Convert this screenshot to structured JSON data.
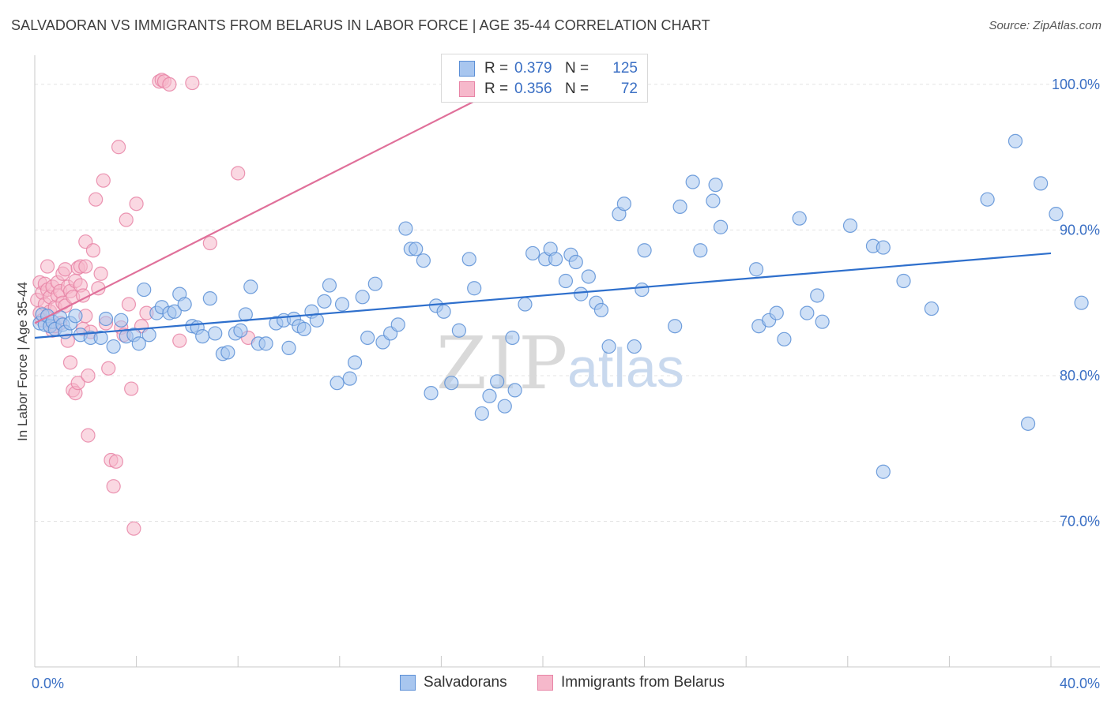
{
  "title": "SALVADORAN VS IMMIGRANTS FROM BELARUS IN LABOR FORCE | AGE 35-44 CORRELATION CHART",
  "source": "Source: ZipAtlas.com",
  "watermark": {
    "zip": "ZIP",
    "atlas": "atlas"
  },
  "colors": {
    "blue_fill": "#a8c6ef",
    "blue_stroke": "#5b8fd6",
    "blue_line": "#2e6fcc",
    "pink_fill": "#f6b8cb",
    "pink_stroke": "#e884a6",
    "pink_line": "#e0709a",
    "value_text": "#3a6fc4",
    "grid": "#e3e3e3"
  },
  "legend": {
    "rows": [
      {
        "r_label": "R =",
        "r_value": "0.379",
        "n_label": "N =",
        "n_value": "125"
      },
      {
        "r_label": "R =",
        "r_value": "0.356",
        "n_label": "N =",
        "n_value": "72"
      }
    ]
  },
  "bottom_legend": [
    "Salvadorans",
    "Immigrants from Belarus"
  ],
  "chart_data": {
    "type": "scatter",
    "xlabel": "",
    "ylabel": "In Labor Force | Age 35-44",
    "xlim": [
      0,
      40
    ],
    "ylim": [
      60,
      102
    ],
    "x_tick_labels": [
      {
        "value": 0,
        "label": "0.0%"
      },
      {
        "value": 40,
        "label": "40.0%"
      }
    ],
    "y_tick_labels": [
      {
        "value": 70,
        "label": "70.0%"
      },
      {
        "value": 80,
        "label": "80.0%"
      },
      {
        "value": 90,
        "label": "90.0%"
      },
      {
        "value": 100,
        "label": "100.0%"
      }
    ],
    "series": [
      {
        "name": "Salvadorans",
        "color": "blue",
        "trend": {
          "x": [
            0,
            40
          ],
          "y": [
            82.6,
            88.4
          ]
        },
        "points": [
          [
            0.2,
            83.6
          ],
          [
            0.3,
            84.2
          ],
          [
            0.4,
            83.5
          ],
          [
            0.5,
            84.1
          ],
          [
            0.6,
            83.4
          ],
          [
            0.7,
            83.7
          ],
          [
            0.8,
            83.2
          ],
          [
            1.0,
            84.0
          ],
          [
            1.1,
            83.5
          ],
          [
            1.2,
            83.0
          ],
          [
            1.4,
            83.6
          ],
          [
            1.6,
            84.1
          ],
          [
            1.8,
            82.8
          ],
          [
            2.2,
            82.6
          ],
          [
            2.6,
            82.6
          ],
          [
            2.8,
            83.9
          ],
          [
            3.1,
            82.0
          ],
          [
            3.4,
            83.8
          ],
          [
            3.6,
            82.7
          ],
          [
            3.9,
            82.8
          ],
          [
            4.1,
            82.2
          ],
          [
            4.3,
            85.9
          ],
          [
            4.5,
            82.8
          ],
          [
            4.8,
            84.3
          ],
          [
            5.0,
            84.7
          ],
          [
            5.3,
            84.3
          ],
          [
            5.5,
            84.4
          ],
          [
            5.7,
            85.6
          ],
          [
            5.9,
            84.9
          ],
          [
            6.2,
            83.4
          ],
          [
            6.4,
            83.3
          ],
          [
            6.6,
            82.7
          ],
          [
            6.9,
            85.3
          ],
          [
            7.1,
            82.9
          ],
          [
            7.4,
            81.5
          ],
          [
            7.6,
            81.6
          ],
          [
            7.9,
            82.9
          ],
          [
            8.1,
            83.1
          ],
          [
            8.3,
            84.2
          ],
          [
            8.5,
            86.1
          ],
          [
            8.8,
            82.2
          ],
          [
            9.1,
            82.2
          ],
          [
            9.5,
            83.6
          ],
          [
            9.8,
            83.8
          ],
          [
            10.0,
            81.9
          ],
          [
            10.2,
            83.9
          ],
          [
            10.4,
            83.4
          ],
          [
            10.6,
            83.2
          ],
          [
            10.9,
            84.4
          ],
          [
            11.1,
            83.8
          ],
          [
            11.4,
            85.1
          ],
          [
            11.6,
            86.2
          ],
          [
            11.9,
            79.5
          ],
          [
            12.1,
            84.9
          ],
          [
            12.4,
            79.8
          ],
          [
            12.6,
            80.9
          ],
          [
            12.9,
            85.4
          ],
          [
            13.1,
            82.6
          ],
          [
            13.4,
            86.3
          ],
          [
            13.7,
            82.3
          ],
          [
            14.0,
            82.9
          ],
          [
            14.3,
            83.5
          ],
          [
            14.6,
            90.1
          ],
          [
            14.8,
            88.7
          ],
          [
            15.0,
            88.7
          ],
          [
            15.3,
            87.9
          ],
          [
            15.6,
            78.8
          ],
          [
            15.8,
            84.8
          ],
          [
            16.1,
            84.4
          ],
          [
            16.4,
            79.5
          ],
          [
            16.7,
            83.1
          ],
          [
            17.1,
            88.0
          ],
          [
            17.3,
            86.0
          ],
          [
            17.6,
            77.4
          ],
          [
            17.9,
            78.6
          ],
          [
            18.2,
            79.6
          ],
          [
            18.5,
            77.9
          ],
          [
            18.8,
            82.6
          ],
          [
            18.9,
            79.0
          ],
          [
            19.3,
            84.9
          ],
          [
            19.6,
            88.4
          ],
          [
            20.1,
            88.0
          ],
          [
            20.3,
            88.7
          ],
          [
            20.5,
            88.0
          ],
          [
            20.9,
            86.5
          ],
          [
            21.1,
            88.3
          ],
          [
            21.3,
            87.8
          ],
          [
            21.5,
            85.6
          ],
          [
            21.8,
            86.8
          ],
          [
            22.1,
            85.0
          ],
          [
            22.3,
            84.5
          ],
          [
            22.6,
            82.0
          ],
          [
            23.0,
            91.1
          ],
          [
            23.2,
            91.8
          ],
          [
            23.6,
            82.0
          ],
          [
            23.9,
            85.9
          ],
          [
            24.0,
            88.6
          ],
          [
            25.2,
            83.4
          ],
          [
            25.4,
            91.6
          ],
          [
            25.9,
            93.3
          ],
          [
            26.2,
            88.6
          ],
          [
            26.8,
            93.1
          ],
          [
            26.7,
            92.0
          ],
          [
            27.0,
            90.2
          ],
          [
            28.4,
            87.3
          ],
          [
            28.5,
            83.4
          ],
          [
            28.9,
            83.8
          ],
          [
            29.2,
            84.3
          ],
          [
            29.5,
            82.5
          ],
          [
            30.1,
            90.8
          ],
          [
            30.4,
            84.3
          ],
          [
            30.8,
            85.5
          ],
          [
            31.0,
            83.7
          ],
          [
            32.1,
            90.3
          ],
          [
            33.0,
            88.9
          ],
          [
            33.4,
            73.4
          ],
          [
            33.4,
            88.8
          ],
          [
            34.2,
            86.5
          ],
          [
            35.3,
            84.6
          ],
          [
            37.5,
            92.1
          ],
          [
            38.6,
            96.1
          ],
          [
            39.1,
            76.7
          ],
          [
            39.6,
            93.2
          ],
          [
            40.2,
            91.1
          ],
          [
            41.2,
            85.0
          ]
        ]
      },
      {
        "name": "Immigrants from Belarus",
        "color": "pink",
        "trend": {
          "x": [
            0,
            19.3
          ],
          "y": [
            83.6,
            100.6
          ]
        },
        "points": [
          [
            0.1,
            85.2
          ],
          [
            0.2,
            86.4
          ],
          [
            0.2,
            84.3
          ],
          [
            0.3,
            85.7
          ],
          [
            0.3,
            83.8
          ],
          [
            0.4,
            86.3
          ],
          [
            0.4,
            84.9
          ],
          [
            0.5,
            87.5
          ],
          [
            0.5,
            85.9
          ],
          [
            0.6,
            85.4
          ],
          [
            0.6,
            84.4
          ],
          [
            0.7,
            86.1
          ],
          [
            0.7,
            83.1
          ],
          [
            0.8,
            84.7
          ],
          [
            0.8,
            83.4
          ],
          [
            0.9,
            86.4
          ],
          [
            0.9,
            85.5
          ],
          [
            1.0,
            85.8
          ],
          [
            1.0,
            83.6
          ],
          [
            1.1,
            87.0
          ],
          [
            1.1,
            85.0
          ],
          [
            1.2,
            87.3
          ],
          [
            1.2,
            84.8
          ],
          [
            1.3,
            86.1
          ],
          [
            1.3,
            82.4
          ],
          [
            1.4,
            85.8
          ],
          [
            1.4,
            80.9
          ],
          [
            1.5,
            85.4
          ],
          [
            1.5,
            79.0
          ],
          [
            1.6,
            86.5
          ],
          [
            1.6,
            78.8
          ],
          [
            1.7,
            87.4
          ],
          [
            1.7,
            79.5
          ],
          [
            1.8,
            87.5
          ],
          [
            1.8,
            86.2
          ],
          [
            1.9,
            85.5
          ],
          [
            1.9,
            83.2
          ],
          [
            2.0,
            89.2
          ],
          [
            2.0,
            84.1
          ],
          [
            2.1,
            80.0
          ],
          [
            2.1,
            75.9
          ],
          [
            2.2,
            83.0
          ],
          [
            2.3,
            88.6
          ],
          [
            2.4,
            92.1
          ],
          [
            2.5,
            86.0
          ],
          [
            2.6,
            87.0
          ],
          [
            2.7,
            93.4
          ],
          [
            2.8,
            83.6
          ],
          [
            2.9,
            80.5
          ],
          [
            3.0,
            74.2
          ],
          [
            3.1,
            72.4
          ],
          [
            3.2,
            74.1
          ],
          [
            3.3,
            95.7
          ],
          [
            3.4,
            83.3
          ],
          [
            3.5,
            82.8
          ],
          [
            3.6,
            90.7
          ],
          [
            3.7,
            84.9
          ],
          [
            3.8,
            79.1
          ],
          [
            3.9,
            69.5
          ],
          [
            4.0,
            91.8
          ],
          [
            4.2,
            83.4
          ],
          [
            4.4,
            84.3
          ],
          [
            4.9,
            100.2
          ],
          [
            5.0,
            100.3
          ],
          [
            5.1,
            100.2
          ],
          [
            5.3,
            100.0
          ],
          [
            5.7,
            82.4
          ],
          [
            6.2,
            100.1
          ],
          [
            6.9,
            89.1
          ],
          [
            8.0,
            93.9
          ],
          [
            8.4,
            82.6
          ],
          [
            2.0,
            87.5
          ]
        ]
      }
    ]
  }
}
